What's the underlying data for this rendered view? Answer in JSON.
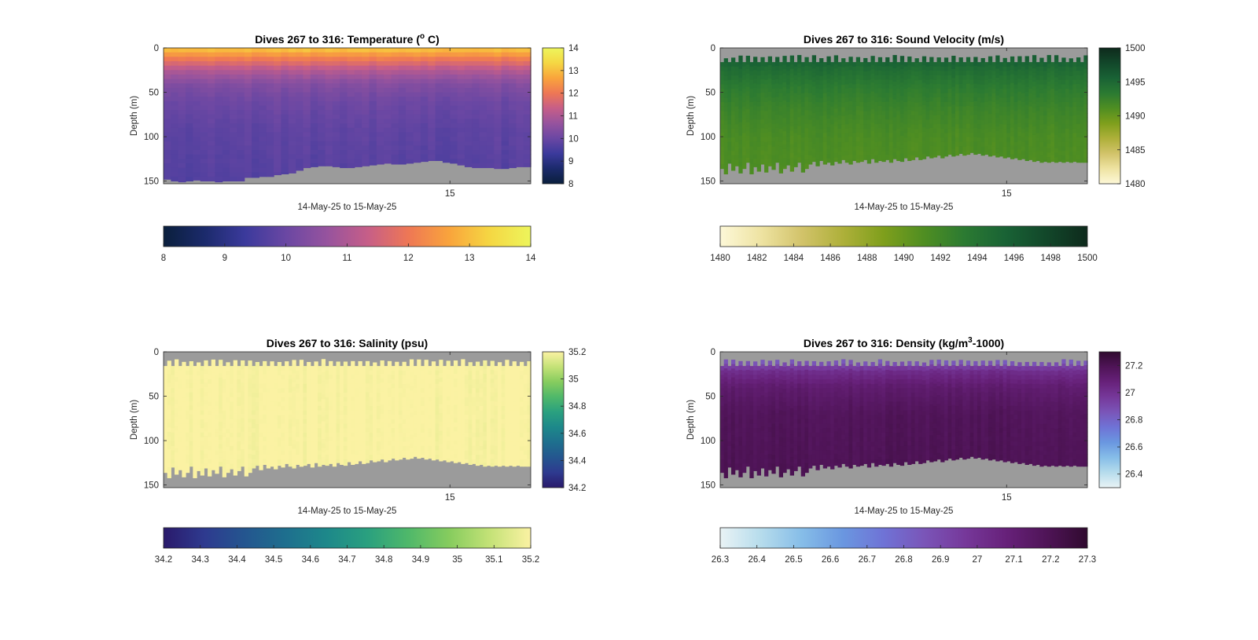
{
  "figure_background": "#ffffff",
  "chart_data": [
    {
      "type": "heatmap",
      "id": "temperature",
      "title_main": "Dives 267 to 316: Temperature (",
      "title_sup": "o",
      "title_end": " C)",
      "ylabel": "Depth (m)",
      "xlabel": "14-May-25 to 15-May-25",
      "x_tick_labels": [
        "15"
      ],
      "x_tick_pos": 0.78,
      "y_ticks": [
        0,
        50,
        100,
        150
      ],
      "ylim": [
        0,
        153
      ],
      "n_dives": 50,
      "range": [
        8,
        14
      ],
      "colorbar_ticks": [
        8,
        9,
        10,
        11,
        12,
        13,
        14
      ],
      "h_colorbar_ticks": [
        8,
        9,
        10,
        11,
        12,
        13,
        14
      ],
      "colormap": [
        "#0a1f3c",
        "#1b2a6b",
        "#3b3a9c",
        "#6a47a3",
        "#96539e",
        "#c65e88",
        "#ee7755",
        "#f9a43c",
        "#f5d743",
        "#edf55c"
      ],
      "profile": [
        [
          0,
          13.2
        ],
        [
          12,
          12.1
        ],
        [
          25,
          11.1
        ],
        [
          40,
          10.4
        ],
        [
          60,
          10.05
        ],
        [
          90,
          9.85
        ],
        [
          150,
          9.7
        ]
      ],
      "top_gap": [
        0,
        0
      ],
      "bottom_start": [
        148,
        150,
        151,
        150,
        149,
        150,
        150,
        151,
        150,
        150,
        150,
        146,
        146,
        145,
        145,
        143,
        142,
        141,
        138,
        135,
        134,
        133,
        133,
        134,
        135,
        135,
        134,
        133,
        132,
        131,
        130,
        131,
        131,
        130,
        129,
        128,
        127,
        127,
        129,
        130,
        132,
        134,
        135,
        135,
        135,
        136,
        136,
        135,
        134,
        134
      ],
      "nodata_color": "#9b9b9b"
    },
    {
      "type": "heatmap",
      "id": "sound_velocity",
      "title_main": "Dives 267 to 316: Sound Velocity (m/s)",
      "title_sup": "",
      "title_end": "",
      "ylabel": "Depth (m)",
      "xlabel": "14-May-25 to 15-May-25",
      "x_tick_labels": [
        "15"
      ],
      "x_tick_pos": 0.78,
      "y_ticks": [
        0,
        50,
        100,
        150
      ],
      "ylim": [
        0,
        153
      ],
      "n_dives": 100,
      "range": [
        1480,
        1500
      ],
      "colorbar_ticks": [
        1480,
        1485,
        1490,
        1495,
        1500
      ],
      "h_colorbar_ticks": [
        1480,
        1482,
        1484,
        1486,
        1488,
        1490,
        1492,
        1494,
        1496,
        1498,
        1500
      ],
      "colormap": [
        "#fdf8d8",
        "#eee3a2",
        "#d2c36a",
        "#aeb03a",
        "#7f9f1c",
        "#4f8e22",
        "#2b7a32",
        "#196235",
        "#12472a",
        "#0e2a1c"
      ],
      "profile": [
        [
          0,
          1496.5
        ],
        [
          10,
          1496.0
        ],
        [
          25,
          1494.5
        ],
        [
          45,
          1493.2
        ],
        [
          70,
          1492.2
        ],
        [
          100,
          1491.4
        ],
        [
          150,
          1491.0
        ]
      ],
      "top_gap": [
        8,
        16
      ],
      "bottom_start": [
        136,
        142,
        130,
        138,
        133,
        141,
        136,
        129,
        142,
        134,
        139,
        131,
        140,
        133,
        137,
        129,
        141,
        136,
        132,
        139,
        134,
        129,
        140,
        136,
        131,
        128,
        133,
        127,
        131,
        129,
        132,
        128,
        130,
        126,
        129,
        131,
        127,
        129,
        128,
        126,
        130,
        125,
        129,
        127,
        128,
        126,
        129,
        125,
        127,
        128,
        124,
        127,
        126,
        123,
        126,
        125,
        122,
        124,
        123,
        121,
        124,
        122,
        120,
        122,
        121,
        119,
        121,
        120,
        118,
        120,
        119,
        121,
        120,
        122,
        121,
        123,
        122,
        124,
        123,
        125,
        124,
        126,
        125,
        127,
        126,
        128,
        127,
        129,
        128,
        129,
        128,
        129,
        128,
        129,
        128,
        129,
        128,
        129,
        129,
        129
      ],
      "nodata_color": "#9b9b9b"
    },
    {
      "type": "heatmap",
      "id": "salinity",
      "title_main": "Dives 267 to 316: Salinity (psu)",
      "title_sup": "",
      "title_end": "",
      "ylabel": "Depth (m)",
      "xlabel": "14-May-25 to 15-May-25",
      "x_tick_labels": [
        "15"
      ],
      "x_tick_pos": 0.78,
      "y_ticks": [
        0,
        50,
        100,
        150
      ],
      "ylim": [
        0,
        153
      ],
      "n_dives": 100,
      "range": [
        34.2,
        35.2
      ],
      "colorbar_ticks": [
        34.2,
        34.4,
        34.6,
        34.8,
        35,
        35.2
      ],
      "h_colorbar_ticks": [
        34.2,
        34.3,
        34.4,
        34.5,
        34.6,
        34.7,
        34.8,
        34.9,
        35,
        35.1,
        35.2
      ],
      "colormap": [
        "#2a1a6b",
        "#2e3a8f",
        "#24568f",
        "#1e6f8e",
        "#1d888a",
        "#2aa07f",
        "#4fb86a",
        "#86cc5e",
        "#c4e277",
        "#fbf2a3"
      ],
      "profile": [
        [
          0,
          35.2
        ],
        [
          150,
          35.2
        ]
      ],
      "top_gap": [
        8,
        16
      ],
      "bottom_start": [
        136,
        142,
        130,
        138,
        133,
        141,
        136,
        129,
        142,
        134,
        139,
        131,
        140,
        133,
        137,
        129,
        141,
        136,
        132,
        139,
        134,
        129,
        140,
        136,
        131,
        128,
        133,
        127,
        131,
        129,
        132,
        128,
        130,
        126,
        129,
        131,
        127,
        129,
        128,
        126,
        130,
        125,
        129,
        127,
        128,
        126,
        129,
        125,
        127,
        128,
        124,
        127,
        126,
        123,
        126,
        125,
        122,
        124,
        123,
        121,
        124,
        122,
        120,
        122,
        121,
        119,
        121,
        120,
        118,
        120,
        119,
        121,
        120,
        122,
        121,
        123,
        122,
        124,
        123,
        125,
        124,
        126,
        125,
        127,
        126,
        128,
        127,
        129,
        128,
        129,
        128,
        129,
        128,
        129,
        128,
        129,
        128,
        129,
        129,
        129
      ],
      "nodata_color": "#9b9b9b"
    },
    {
      "type": "heatmap",
      "id": "density",
      "title_main": "Dives 267 to 316: Density (kg/m",
      "title_sup": "3",
      "title_end": "-1000)",
      "ylabel": "Depth (m)",
      "xlabel": "14-May-25 to 15-May-25",
      "x_tick_labels": [
        "15"
      ],
      "x_tick_pos": 0.78,
      "y_ticks": [
        0,
        50,
        100,
        150
      ],
      "ylim": [
        0,
        153
      ],
      "n_dives": 100,
      "range": [
        26.3,
        27.3
      ],
      "colorbar_ticks": [
        26.4,
        26.6,
        26.8,
        27,
        27.2
      ],
      "h_colorbar_ticks": [
        26.3,
        26.4,
        26.5,
        26.6,
        26.7,
        26.8,
        26.9,
        27,
        27.1,
        27.2,
        27.3
      ],
      "colormap": [
        "#e9f3f5",
        "#b6dcec",
        "#86bde8",
        "#6a97e0",
        "#6f73d6",
        "#7a55b8",
        "#76389a",
        "#67217a",
        "#4f1457",
        "#300a2f"
      ],
      "profile": [
        [
          0,
          26.78
        ],
        [
          12,
          26.85
        ],
        [
          22,
          27.02
        ],
        [
          40,
          27.12
        ],
        [
          70,
          27.18
        ],
        [
          150,
          27.2
        ]
      ],
      "top_gap": [
        8,
        16
      ],
      "bottom_start": [
        136,
        142,
        130,
        138,
        133,
        141,
        136,
        129,
        142,
        134,
        139,
        131,
        140,
        133,
        137,
        129,
        141,
        136,
        132,
        139,
        134,
        129,
        140,
        136,
        131,
        128,
        133,
        127,
        131,
        129,
        132,
        128,
        130,
        126,
        129,
        131,
        127,
        129,
        128,
        126,
        130,
        125,
        129,
        127,
        128,
        126,
        129,
        125,
        127,
        128,
        124,
        127,
        126,
        123,
        126,
        125,
        122,
        124,
        123,
        121,
        124,
        122,
        120,
        122,
        121,
        119,
        121,
        120,
        118,
        120,
        119,
        121,
        120,
        122,
        121,
        123,
        122,
        124,
        123,
        125,
        124,
        126,
        125,
        127,
        126,
        128,
        127,
        129,
        128,
        129,
        128,
        129,
        128,
        129,
        128,
        129,
        128,
        129,
        129,
        129
      ],
      "nodata_color": "#9b9b9b"
    }
  ]
}
